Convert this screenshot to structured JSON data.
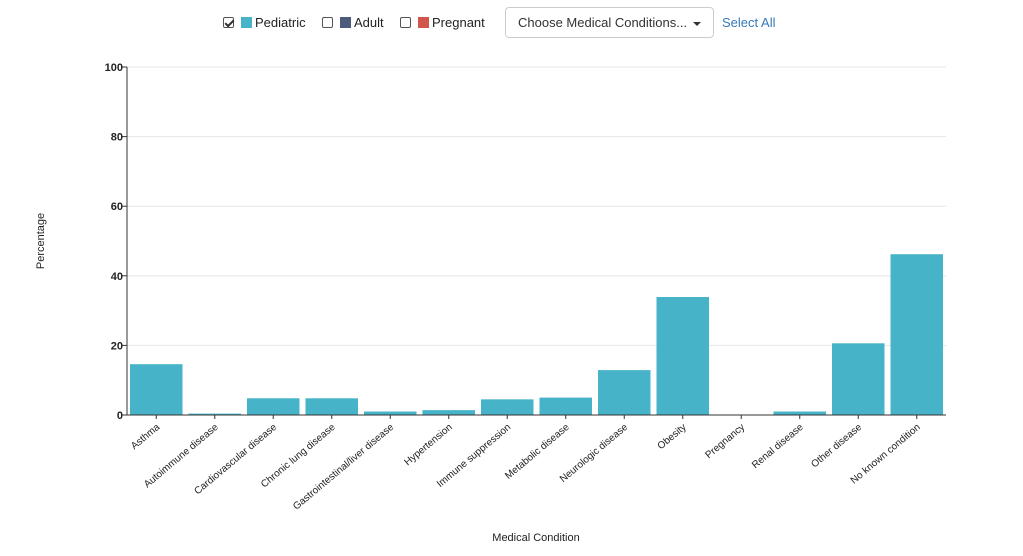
{
  "controls": {
    "checkboxes": [
      {
        "label": "Pediatric",
        "checked": true,
        "color": "#46b3c8"
      },
      {
        "label": "Adult",
        "checked": false,
        "color": "#4c5c7a"
      },
      {
        "label": "Pregnant",
        "checked": false,
        "color": "#d1554a"
      }
    ],
    "dropdown_label": "Choose Medical Conditions...",
    "select_all_label": "Select All"
  },
  "chart_data": {
    "type": "bar",
    "xlabel": "Medical Condition",
    "ylabel": "Percentage",
    "ylim": [
      0,
      100
    ],
    "yticks": [
      0,
      20,
      40,
      60,
      80,
      100
    ],
    "grid": true,
    "categories": [
      "Asthma",
      "Autoimmune disease",
      "Cardiovascular disease",
      "Chronic lung disease",
      "Gastrointestinal/liver disease",
      "Hypertension",
      "Immune suppression",
      "Metabolic disease",
      "Neurologic disease",
      "Obesity",
      "Pregnancy",
      "Renal disease",
      "Other disease",
      "No known condition"
    ],
    "series": [
      {
        "name": "Pediatric",
        "color": "#46b3c8",
        "values": [
          14.6,
          0.4,
          4.8,
          4.8,
          1.0,
          1.4,
          4.5,
          5.0,
          12.9,
          33.9,
          0.1,
          1.0,
          20.6,
          46.2
        ]
      }
    ]
  }
}
